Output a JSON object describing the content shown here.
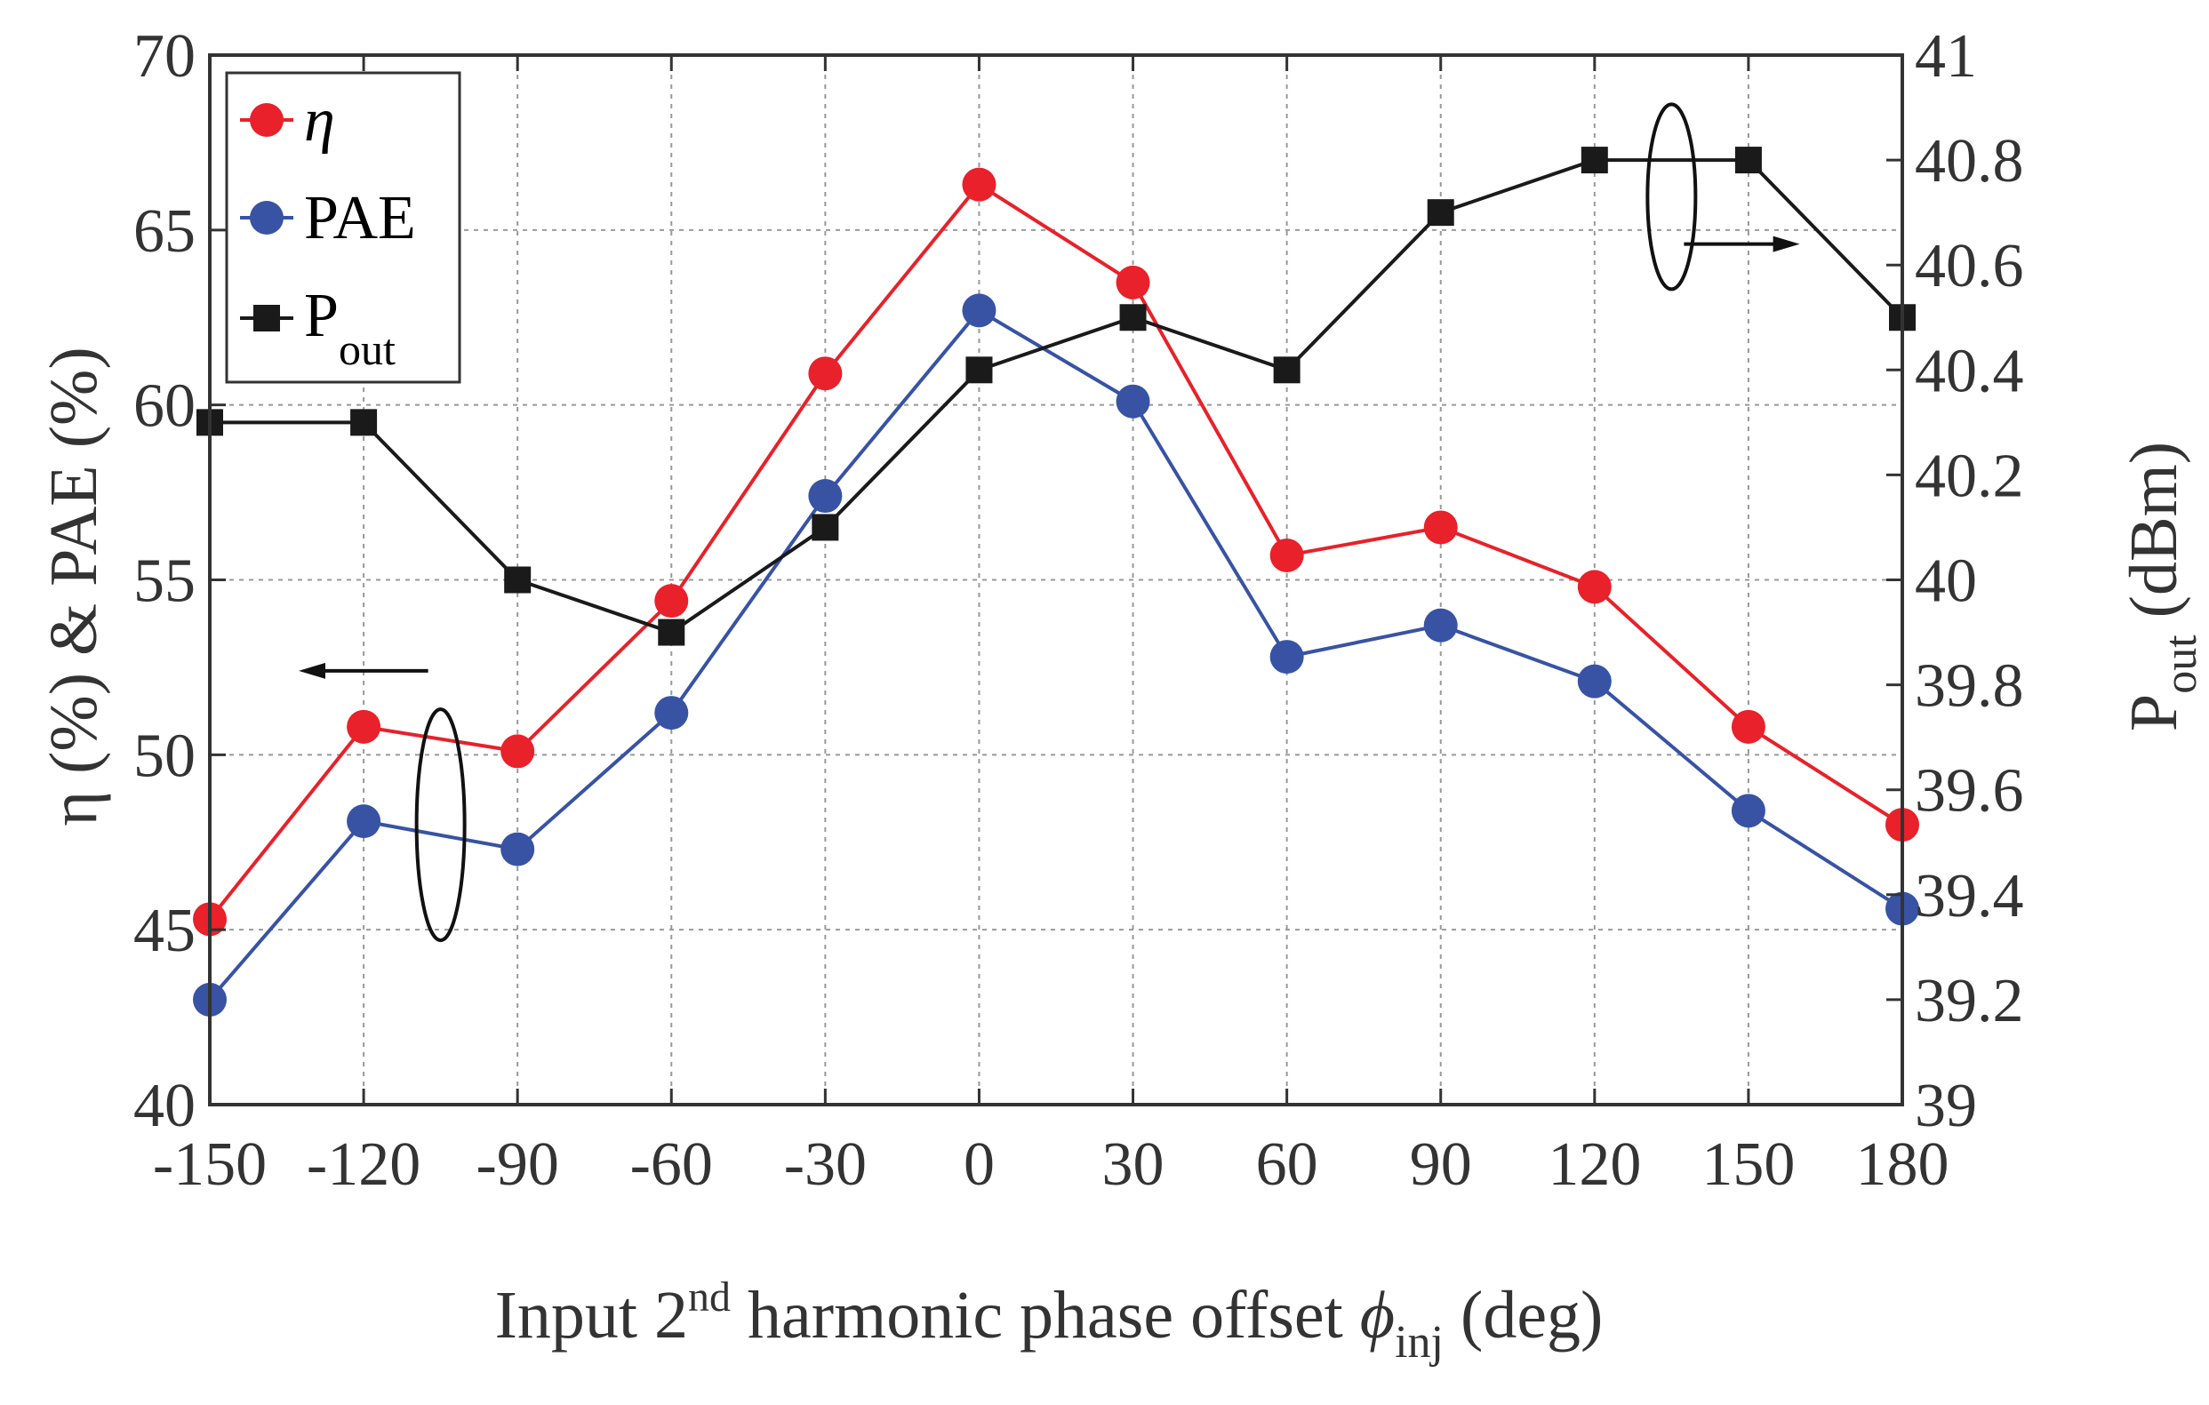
{
  "chart_data": {
    "type": "line",
    "x": [
      -150,
      -120,
      -90,
      -60,
      -30,
      0,
      30,
      60,
      90,
      120,
      150,
      180
    ],
    "x_ticks": [
      "-150",
      "-120",
      "-90",
      "-60",
      "-30",
      "0",
      "30",
      "60",
      "90",
      "120",
      "150",
      "180"
    ],
    "xlim": [
      -150,
      180
    ],
    "xlabel": {
      "main": "Input 2",
      "sup": "nd",
      "mid": " harmonic phase offset ",
      "symbol": "ϕ",
      "sub": "inj",
      "tail": " (deg)"
    },
    "ylabel_left": "η (%) & PAE (%)",
    "ylabel_right": {
      "main": "P",
      "sub": "out",
      "tail": " (dBm)"
    },
    "ylim_left": [
      40,
      70
    ],
    "ylim_right": [
      39,
      41
    ],
    "y_ticks_left": [
      "40",
      "45",
      "50",
      "55",
      "60",
      "65",
      "70"
    ],
    "y_ticks_right": [
      "39",
      "39.2",
      "39.4",
      "39.6",
      "39.8",
      "40",
      "40.2",
      "40.4",
      "40.6",
      "40.8",
      "41"
    ],
    "grid": true,
    "legend_position": "top-left",
    "series": [
      {
        "name": "η",
        "axis": "left",
        "color": "#e8212a",
        "marker": "circle",
        "values": [
          45.3,
          50.8,
          50.1,
          54.4,
          60.9,
          66.3,
          63.5,
          55.7,
          56.5,
          54.8,
          50.8,
          48.0
        ]
      },
      {
        "name": "PAE",
        "axis": "left",
        "color": "#3853a4",
        "marker": "circle",
        "values": [
          43.0,
          48.1,
          47.3,
          51.2,
          57.4,
          62.7,
          60.1,
          52.8,
          53.7,
          52.1,
          48.4,
          45.6
        ]
      },
      {
        "name": "P",
        "name_sub": "out",
        "axis": "right",
        "color": "#1a1a1a",
        "marker": "square",
        "values": [
          40.3,
          40.3,
          40.0,
          39.9,
          40.1,
          40.4,
          40.5,
          40.4,
          40.7,
          40.8,
          40.8,
          40.5
        ]
      }
    ]
  }
}
